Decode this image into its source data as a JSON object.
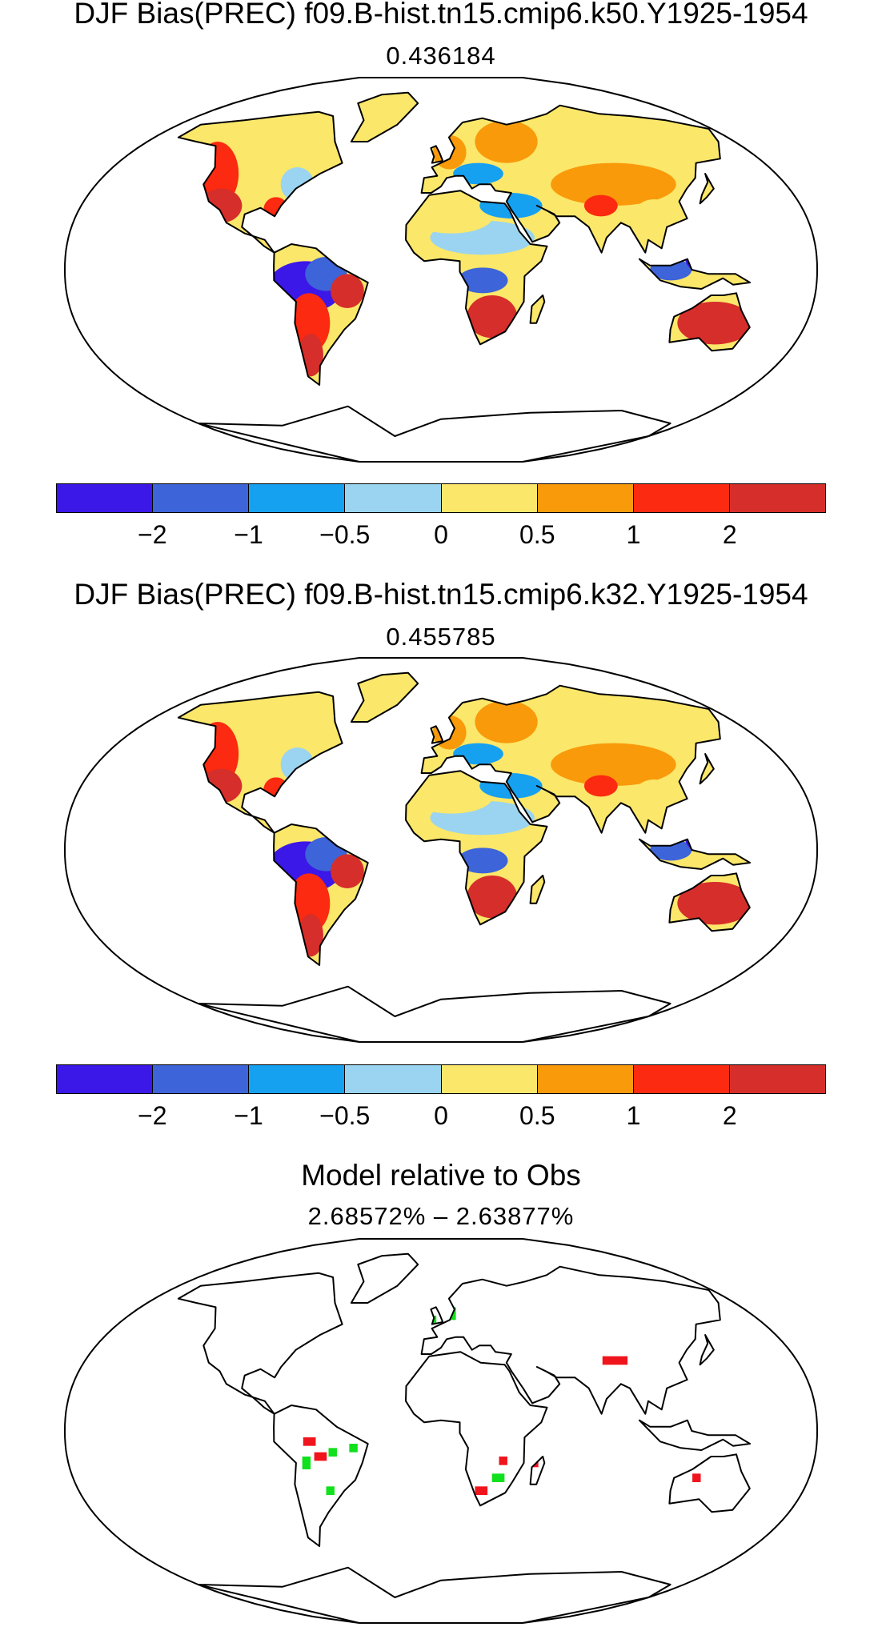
{
  "panels": [
    {
      "title": "DJF Bias(PREC) f09.B-hist.tn15.cmip6.k50.Y1925-1954",
      "subtitle": "0.436184"
    },
    {
      "title": "DJF Bias(PREC) f09.B-hist.tn15.cmip6.k32.Y1925-1954",
      "subtitle": "0.455785"
    },
    {
      "title": "Model relative to Obs",
      "subtitle": "2.68572% – 2.63877%"
    }
  ],
  "colorbar": {
    "colors": [
      "#3b17e8",
      "#3d64d8",
      "#16a0f0",
      "#9ad4f0",
      "#fbe76a",
      "#f99a0b",
      "#fb2a10",
      "#d62e2a"
    ],
    "tick_labels": [
      "−2",
      "−1",
      "−0.5",
      "0",
      "0.5",
      "1",
      "2"
    ]
  },
  "diff_colors": {
    "improved": "#11e01c",
    "degraded": "#f0141c"
  }
}
